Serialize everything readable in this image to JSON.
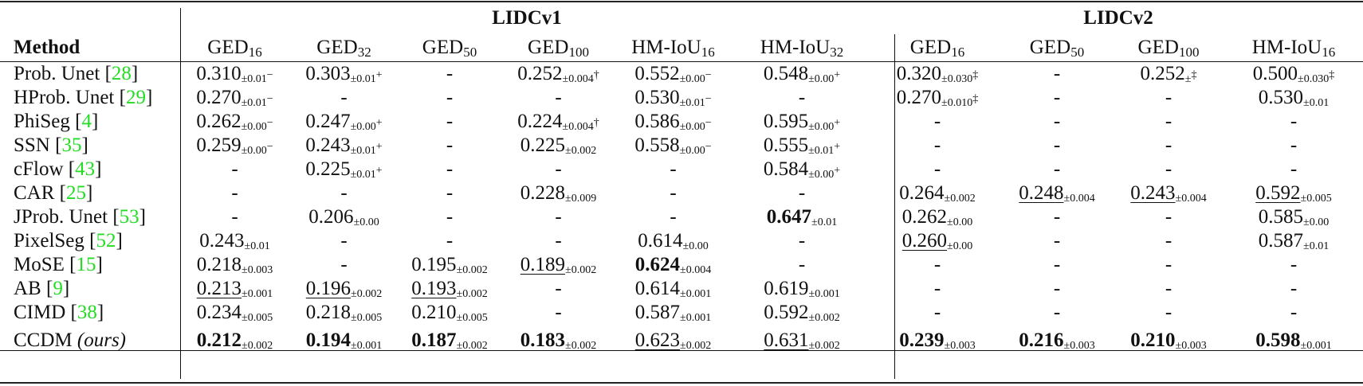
{
  "table": {
    "groups": [
      {
        "label": "LIDCv1",
        "span": 6
      },
      {
        "label": "LIDCv2",
        "span": 4
      }
    ],
    "method_header": "Method",
    "columns": [
      {
        "base": "GED",
        "sub": "16",
        "group": "LIDCv1"
      },
      {
        "base": "GED",
        "sub": "32",
        "group": "LIDCv1"
      },
      {
        "base": "GED",
        "sub": "50",
        "group": "LIDCv1"
      },
      {
        "base": "GED",
        "sub": "100",
        "group": "LIDCv1"
      },
      {
        "base": "HM-IoU",
        "sub": "16",
        "group": "LIDCv1"
      },
      {
        "base": "HM-IoU",
        "sub": "32",
        "group": "LIDCv1"
      },
      {
        "base": "GED",
        "sub": "16",
        "group": "LIDCv2"
      },
      {
        "base": "GED",
        "sub": "50",
        "group": "LIDCv2"
      },
      {
        "base": "GED",
        "sub": "100",
        "group": "LIDCv2"
      },
      {
        "base": "HM-IoU",
        "sub": "16",
        "group": "LIDCv2"
      }
    ],
    "rows": [
      {
        "name": "Prob. Unet",
        "cite": "28",
        "suffix": "",
        "cells": [
          {
            "v": "0.310",
            "s": "±0.01",
            "m": "−"
          },
          {
            "v": "0.303",
            "s": "±0.01",
            "m": "+"
          },
          {
            "v": "-"
          },
          {
            "v": "0.252",
            "s": "±0.004",
            "m": "†"
          },
          {
            "v": "0.552",
            "s": "±0.00",
            "m": "−"
          },
          {
            "v": "0.548",
            "s": "±0.00",
            "m": "+"
          },
          {
            "v": "0.320",
            "s": "±0.030",
            "m": "‡"
          },
          {
            "v": "-"
          },
          {
            "v": "0.252",
            "s": "±",
            "m": "‡"
          },
          {
            "v": "0.500",
            "s": "±0.030",
            "m": "‡"
          }
        ]
      },
      {
        "name": "HProb. Unet",
        "cite": "29",
        "suffix": "",
        "cells": [
          {
            "v": "0.270",
            "s": "±0.01",
            "m": "−"
          },
          {
            "v": "-"
          },
          {
            "v": "-"
          },
          {
            "v": "-"
          },
          {
            "v": "0.530",
            "s": "±0.01",
            "m": "−"
          },
          {
            "v": "-"
          },
          {
            "v": "0.270",
            "s": "±0.010",
            "m": "‡"
          },
          {
            "v": "-"
          },
          {
            "v": "-"
          },
          {
            "v": "0.530",
            "s": "±0.01"
          }
        ]
      },
      {
        "name": "PhiSeg",
        "cite": "4",
        "suffix": "",
        "cells": [
          {
            "v": "0.262",
            "s": "±0.00",
            "m": "−"
          },
          {
            "v": "0.247",
            "s": "±0.00",
            "m": "+"
          },
          {
            "v": "-"
          },
          {
            "v": "0.224",
            "s": "±0.004",
            "m": "†"
          },
          {
            "v": "0.586",
            "s": "±0.00",
            "m": "−"
          },
          {
            "v": "0.595",
            "s": "±0.00",
            "m": "+"
          },
          {
            "v": "-"
          },
          {
            "v": "-"
          },
          {
            "v": "-"
          },
          {
            "v": "-"
          }
        ]
      },
      {
        "name": "SSN",
        "cite": "35",
        "suffix": "",
        "cells": [
          {
            "v": "0.259",
            "s": "±0.00",
            "m": "−"
          },
          {
            "v": "0.243",
            "s": "±0.01",
            "m": "+"
          },
          {
            "v": "-"
          },
          {
            "v": "0.225",
            "s": "±0.002"
          },
          {
            "v": "0.558",
            "s": "±0.00",
            "m": "−"
          },
          {
            "v": "0.555",
            "s": "±0.01",
            "m": "+"
          },
          {
            "v": "-"
          },
          {
            "v": "-"
          },
          {
            "v": "-"
          },
          {
            "v": "-"
          }
        ]
      },
      {
        "name": "cFlow",
        "cite": "43",
        "suffix": "",
        "cells": [
          {
            "v": "-"
          },
          {
            "v": "0.225",
            "s": "±0.01",
            "m": "+"
          },
          {
            "v": "-"
          },
          {
            "v": "-"
          },
          {
            "v": "-"
          },
          {
            "v": "0.584",
            "s": "±0.00",
            "m": "+"
          },
          {
            "v": "-"
          },
          {
            "v": "-"
          },
          {
            "v": "-"
          },
          {
            "v": "-"
          }
        ]
      },
      {
        "name": "CAR",
        "cite": "25",
        "suffix": "",
        "cells": [
          {
            "v": "-"
          },
          {
            "v": "-"
          },
          {
            "v": "-"
          },
          {
            "v": "0.228",
            "s": "±0.009"
          },
          {
            "v": "-"
          },
          {
            "v": "-"
          },
          {
            "v": "0.264",
            "s": "±0.002"
          },
          {
            "v": "0.248",
            "s": "±0.004",
            "ul": true
          },
          {
            "v": "0.243",
            "s": "±0.004",
            "ul": true
          },
          {
            "v": "0.592",
            "s": "±0.005",
            "ul": true
          }
        ]
      },
      {
        "name": "JProb. Unet",
        "cite": "53",
        "suffix": "",
        "cells": [
          {
            "v": "-"
          },
          {
            "v": "0.206",
            "s": "±0.00"
          },
          {
            "v": "-"
          },
          {
            "v": "-"
          },
          {
            "v": "-"
          },
          {
            "v": "0.647",
            "s": "±0.01",
            "b": true
          },
          {
            "v": "0.262",
            "s": "±0.00"
          },
          {
            "v": "-"
          },
          {
            "v": "-"
          },
          {
            "v": "0.585",
            "s": "±0.00"
          }
        ]
      },
      {
        "name": "PixelSeg",
        "cite": "52",
        "suffix": "",
        "cells": [
          {
            "v": "0.243",
            "s": "±0.01"
          },
          {
            "v": "-"
          },
          {
            "v": "-"
          },
          {
            "v": "-"
          },
          {
            "v": "0.614",
            "s": "±0.00"
          },
          {
            "v": "-"
          },
          {
            "v": "0.260",
            "s": "±0.00",
            "ul": true
          },
          {
            "v": "-"
          },
          {
            "v": "-"
          },
          {
            "v": "0.587",
            "s": "±0.01"
          }
        ]
      },
      {
        "name": "MoSE",
        "cite": "15",
        "suffix": "",
        "cells": [
          {
            "v": "0.218",
            "s": "±0.003"
          },
          {
            "v": "-"
          },
          {
            "v": "0.195",
            "s": "±0.002"
          },
          {
            "v": "0.189",
            "s": "±0.002",
            "ul": true
          },
          {
            "v": "0.624",
            "s": "±0.004",
            "b": true
          },
          {
            "v": "-"
          },
          {
            "v": "-"
          },
          {
            "v": "-"
          },
          {
            "v": "-"
          },
          {
            "v": "-"
          }
        ]
      },
      {
        "name": "AB",
        "cite": "9",
        "suffix": "",
        "cells": [
          {
            "v": "0.213",
            "s": "±0.001",
            "ul": true
          },
          {
            "v": "0.196",
            "s": "±0.002",
            "ul": true
          },
          {
            "v": "0.193",
            "s": "±0.002",
            "ul": true
          },
          {
            "v": "-"
          },
          {
            "v": "0.614",
            "s": "±0.001"
          },
          {
            "v": "0.619",
            "s": "±0.001"
          },
          {
            "v": "-"
          },
          {
            "v": "-"
          },
          {
            "v": "-"
          },
          {
            "v": "-"
          }
        ]
      },
      {
        "name": "CIMD",
        "cite": "38",
        "suffix": "",
        "cells": [
          {
            "v": "0.234",
            "s": "±0.005"
          },
          {
            "v": "0.218",
            "s": "±0.005"
          },
          {
            "v": "0.210",
            "s": "±0.005"
          },
          {
            "v": "-"
          },
          {
            "v": "0.587",
            "s": "±0.001"
          },
          {
            "v": "0.592",
            "s": "±0.002"
          },
          {
            "v": "-"
          },
          {
            "v": "-"
          },
          {
            "v": "-"
          },
          {
            "v": "-"
          }
        ]
      }
    ],
    "ours": {
      "name": "CCDM",
      "suffix": "(ours)",
      "cells": [
        {
          "v": "0.212",
          "s": "±0.002",
          "b": true
        },
        {
          "v": "0.194",
          "s": "±0.001",
          "b": true
        },
        {
          "v": "0.187",
          "s": "±0.002",
          "b": true
        },
        {
          "v": "0.183",
          "s": "±0.002",
          "b": true
        },
        {
          "v": "0.623",
          "s": "±0.002",
          "ul": true
        },
        {
          "v": "0.631",
          "s": "±0.002",
          "ul": true
        },
        {
          "v": "0.239",
          "s": "±0.003",
          "b": true
        },
        {
          "v": "0.216",
          "s": "±0.003",
          "b": true
        },
        {
          "v": "0.210",
          "s": "±0.003",
          "b": true
        },
        {
          "v": "0.598",
          "s": "±0.001",
          "b": true
        }
      ]
    },
    "colors": {
      "citation": "#22dd22",
      "text": "#111111",
      "rules": "#222222"
    }
  }
}
